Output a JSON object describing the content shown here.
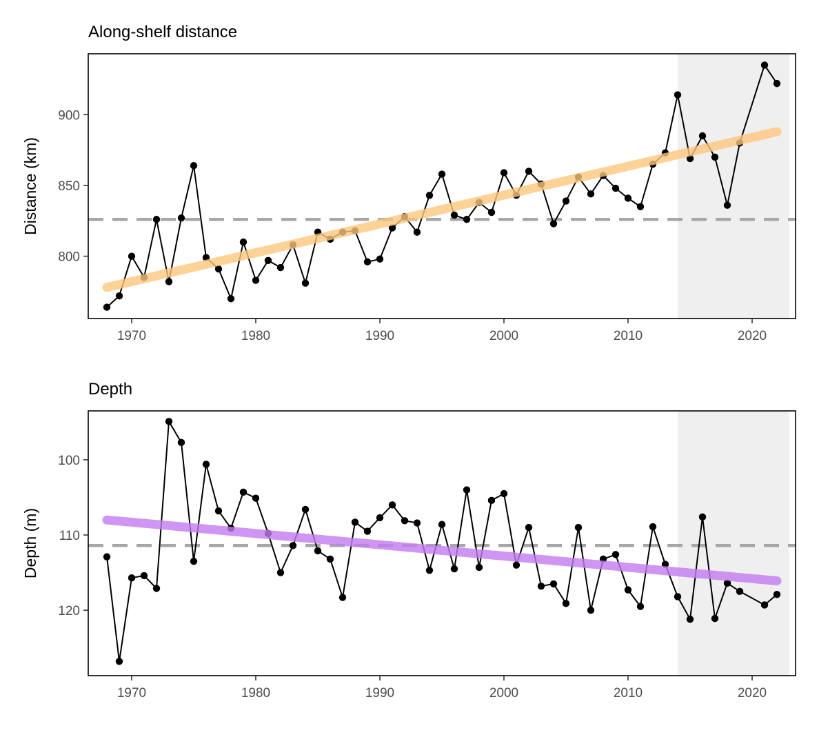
{
  "chart_data": [
    {
      "type": "line",
      "title": "Along-shelf distance",
      "xlabel": "",
      "ylabel": "Distance (km)",
      "xlim": [
        1966.5,
        2023.5
      ],
      "ylim": [
        756,
        943
      ],
      "x_ticks": [
        1970,
        1980,
        1990,
        2000,
        2010,
        2020
      ],
      "y_ticks": [
        800,
        850,
        900
      ],
      "y_reversed": false,
      "grid": false,
      "shaded_period": [
        2014,
        2023
      ],
      "shade_color": "#efefef",
      "reference_line": 826,
      "reference_color": "#a6a6a6",
      "trend": {
        "x": [
          1968,
          2022
        ],
        "y": [
          778,
          888
        ],
        "color": "#fdc77e"
      },
      "series": {
        "x": [
          1968,
          1969,
          1970,
          1971,
          1972,
          1973,
          1974,
          1975,
          1976,
          1977,
          1978,
          1979,
          1980,
          1981,
          1982,
          1983,
          1984,
          1985,
          1986,
          1987,
          1988,
          1989,
          1990,
          1991,
          1992,
          1993,
          1994,
          1995,
          1996,
          1997,
          1998,
          1999,
          2000,
          2001,
          2002,
          2003,
          2004,
          2005,
          2006,
          2007,
          2008,
          2009,
          2010,
          2011,
          2012,
          2013,
          2014,
          2015,
          2016,
          2017,
          2018,
          2019,
          2021,
          2022
        ],
        "y": [
          764,
          772,
          800,
          785,
          826,
          782,
          827,
          864,
          799,
          791,
          770,
          810,
          783,
          797,
          792,
          808,
          781,
          817,
          812,
          817,
          818,
          796,
          798,
          820,
          828,
          817,
          843,
          858,
          829,
          826,
          838,
          831,
          859,
          843,
          860,
          851,
          823,
          839,
          856,
          844,
          857,
          848,
          841,
          835,
          865,
          873,
          914,
          869,
          885,
          870,
          836,
          880,
          935,
          922
        ],
        "color": "#000000"
      }
    },
    {
      "type": "line",
      "title": "Depth",
      "xlabel": "",
      "ylabel": "Depth (m)",
      "xlim": [
        1966.5,
        2023.5
      ],
      "ylim": [
        93.5,
        128.7
      ],
      "x_ticks": [
        1970,
        1980,
        1990,
        2000,
        2010,
        2020
      ],
      "y_ticks": [
        100,
        110,
        120
      ],
      "y_reversed": true,
      "grid": false,
      "shaded_period": [
        2014,
        2023
      ],
      "shade_color": "#efefef",
      "reference_line": 111.4,
      "reference_color": "#a6a6a6",
      "trend": {
        "x": [
          1968,
          2022
        ],
        "y": [
          108,
          116.1
        ],
        "color": "#c37df0"
      },
      "series": {
        "x": [
          1968,
          1969,
          1970,
          1971,
          1972,
          1973,
          1974,
          1975,
          1976,
          1977,
          1978,
          1979,
          1980,
          1981,
          1982,
          1983,
          1984,
          1985,
          1986,
          1987,
          1988,
          1989,
          1990,
          1991,
          1992,
          1993,
          1994,
          1995,
          1996,
          1997,
          1998,
          1999,
          2000,
          2001,
          2002,
          2003,
          2004,
          2005,
          2006,
          2007,
          2008,
          2009,
          2010,
          2011,
          2012,
          2013,
          2014,
          2015,
          2016,
          2017,
          2018,
          2019,
          2021,
          2022
        ],
        "y": [
          112.9,
          126.8,
          115.7,
          115.4,
          117.1,
          94.9,
          97.7,
          113.5,
          100.6,
          106.8,
          109.1,
          104.3,
          105.1,
          109.8,
          115.0,
          111.4,
          106.6,
          112.1,
          113.2,
          118.3,
          108.3,
          109.5,
          107.7,
          106.0,
          108.1,
          108.4,
          114.7,
          108.6,
          114.5,
          104.0,
          114.3,
          105.4,
          104.5,
          114.0,
          109.0,
          116.8,
          116.5,
          119.1,
          109.0,
          120.0,
          113.2,
          112.6,
          117.3,
          119.5,
          108.9,
          113.9,
          118.2,
          121.2,
          107.6,
          121.1,
          116.4,
          117.5,
          119.3,
          117.9
        ],
        "color": "#000000"
      }
    }
  ]
}
